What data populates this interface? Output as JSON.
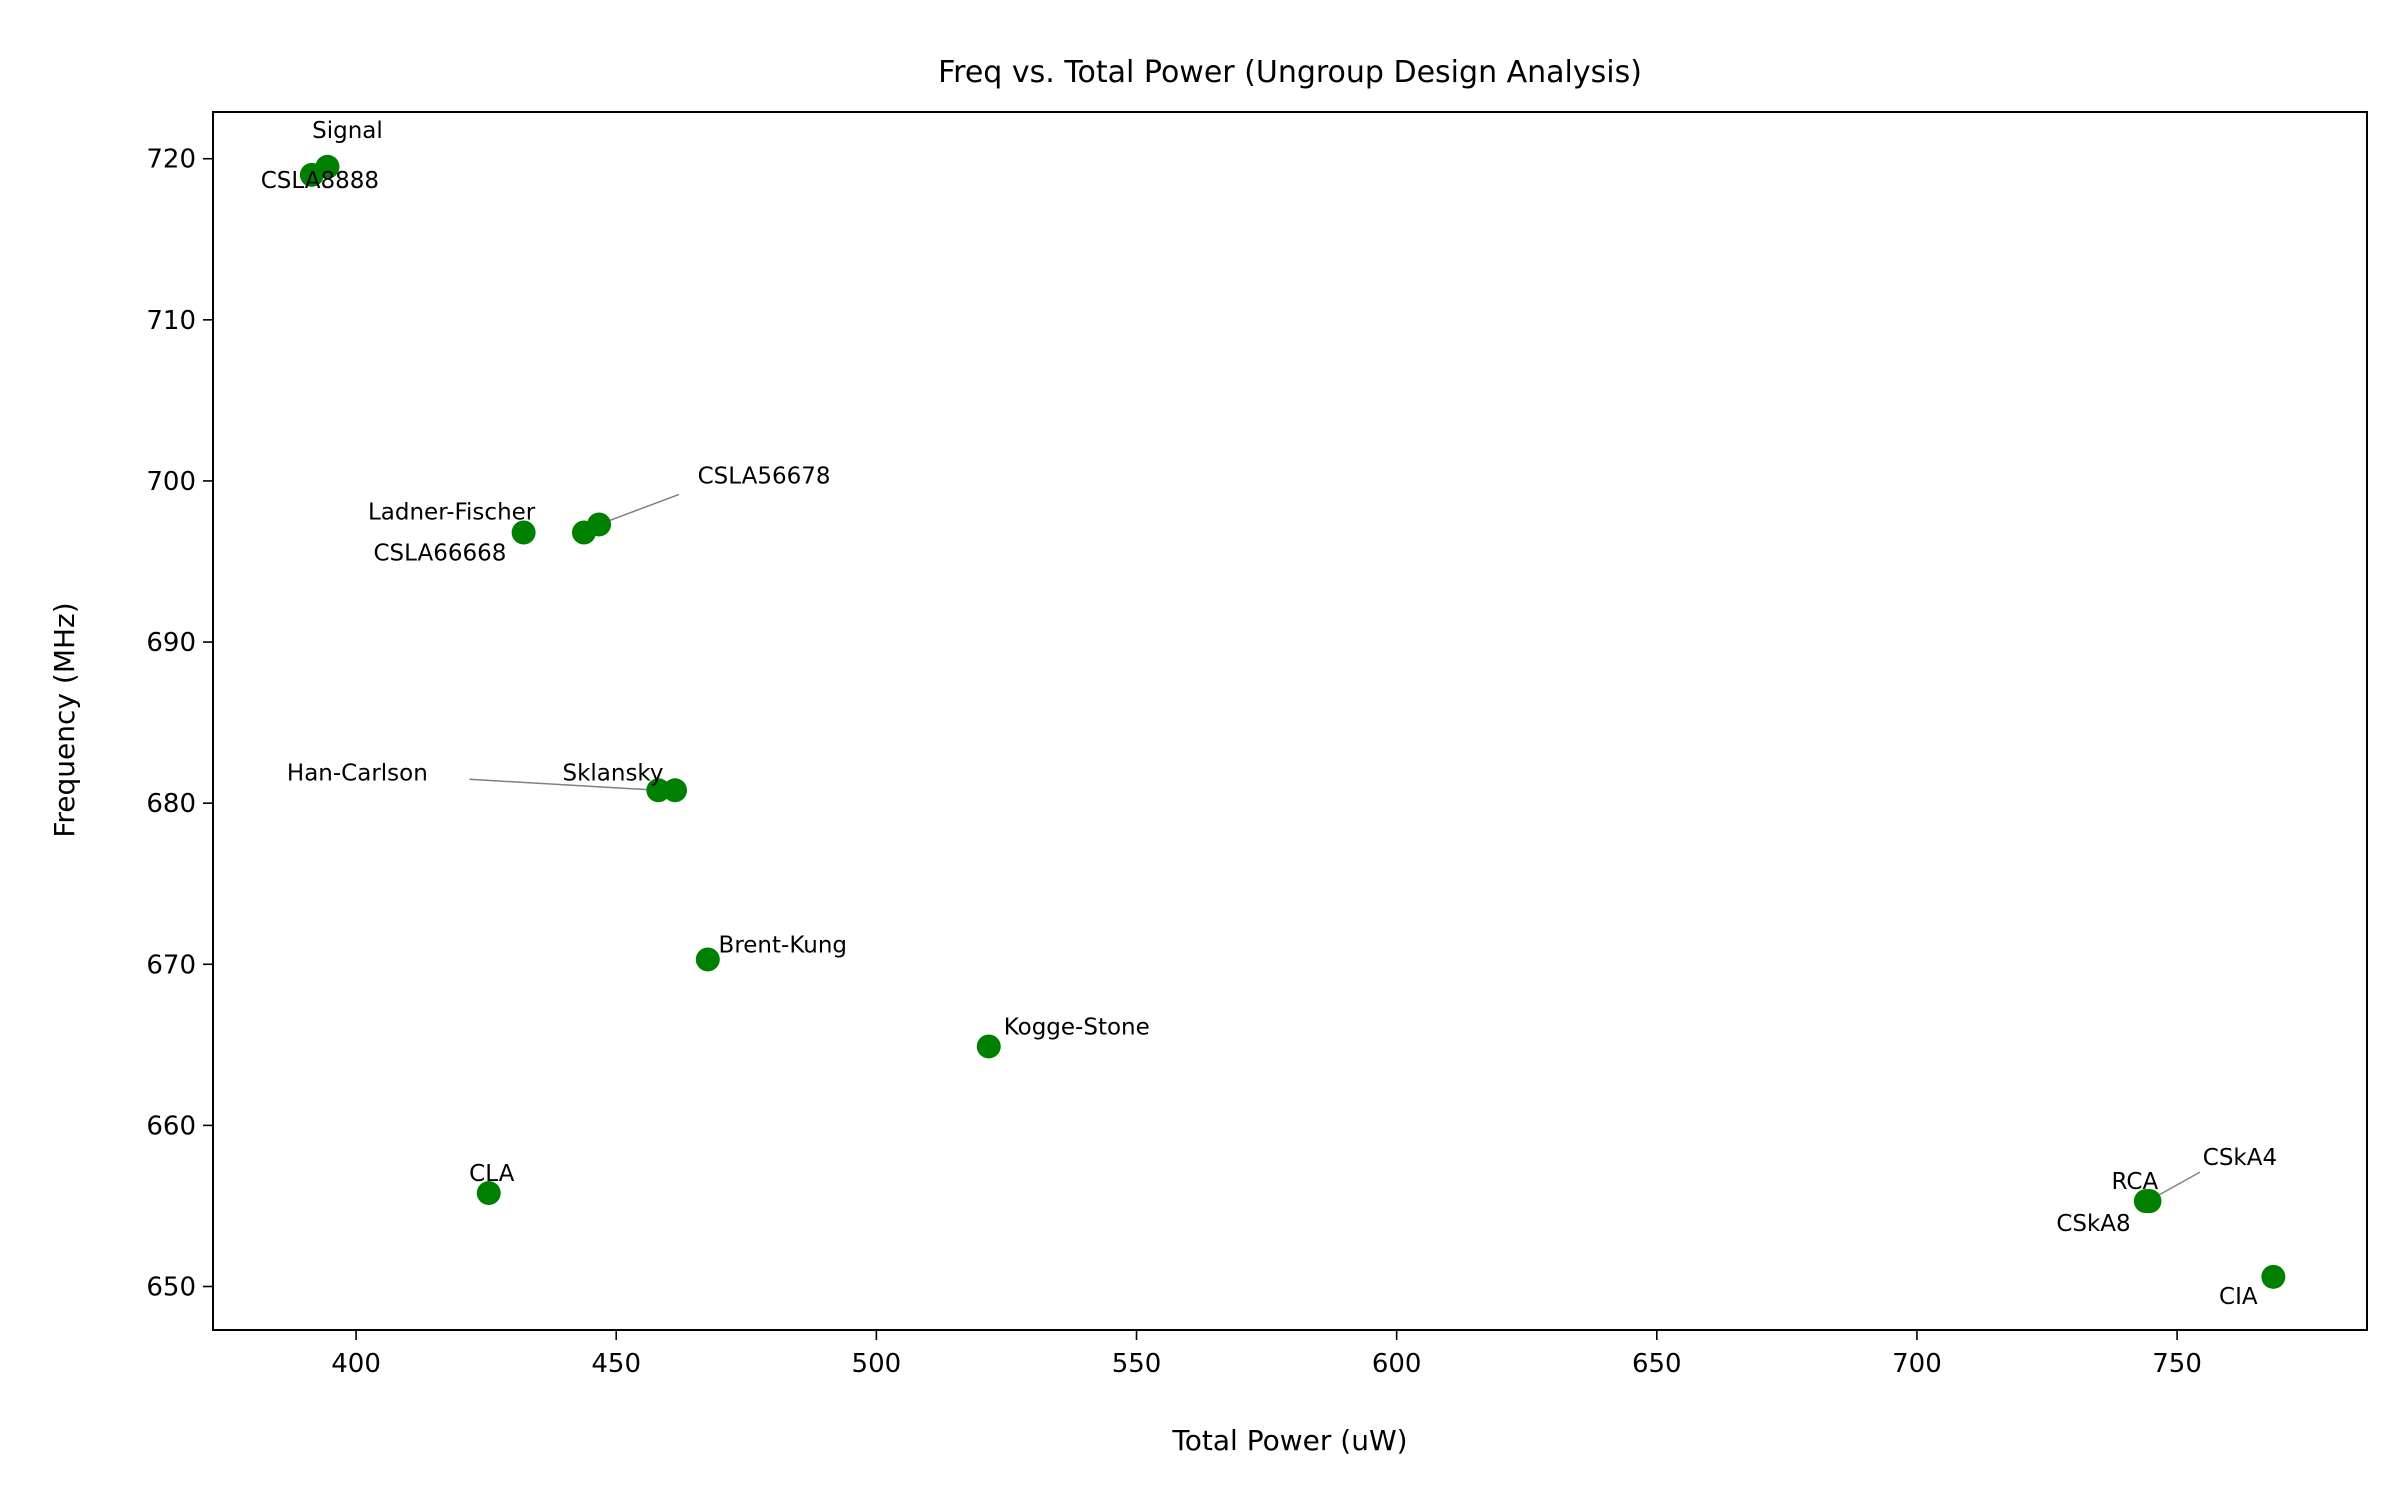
{
  "chart_data": {
    "type": "scatter",
    "title": "Freq vs. Total Power (Ungroup Design Analysis)",
    "xlabel": "Total Power (uW)",
    "ylabel": "Frequency (MHz)",
    "xlim": [
      372.5,
      786.5
    ],
    "ylim": [
      647.3,
      722.9
    ],
    "xticks": [
      400,
      450,
      500,
      550,
      600,
      650,
      700,
      750
    ],
    "yticks": [
      650,
      660,
      670,
      680,
      690,
      700,
      710,
      720
    ],
    "grid": false,
    "point_color": "#008000",
    "points": [
      {
        "label": "CSLA8888",
        "x": 391.5,
        "y": 719.0
      },
      {
        "label": "Signal",
        "x": 394.5,
        "y": 719.5
      },
      {
        "label": "Ladner-Fischer",
        "x": 432.2,
        "y": 696.8
      },
      {
        "label": "CSLA66668",
        "x": 443.8,
        "y": 696.8
      },
      {
        "label": "CSLA56678",
        "x": 446.7,
        "y": 697.3
      },
      {
        "label": "Han-Carlson",
        "x": 458.1,
        "y": 680.8
      },
      {
        "label": "Sklansky",
        "x": 461.3,
        "y": 680.8
      },
      {
        "label": "Brent-Kung",
        "x": 467.6,
        "y": 670.3
      },
      {
        "label": "Kogge-Stone",
        "x": 521.6,
        "y": 664.9
      },
      {
        "label": "CLA",
        "x": 425.5,
        "y": 655.8
      },
      {
        "label": "RCA",
        "x": 744.0,
        "y": 655.3
      },
      {
        "label": "CSkA4",
        "x": 744.4,
        "y": 655.3
      },
      {
        "label": "CSkA8",
        "x": 744.7,
        "y": 655.3
      },
      {
        "label": "CIA",
        "x": 768.5,
        "y": 650.6
      }
    ]
  }
}
